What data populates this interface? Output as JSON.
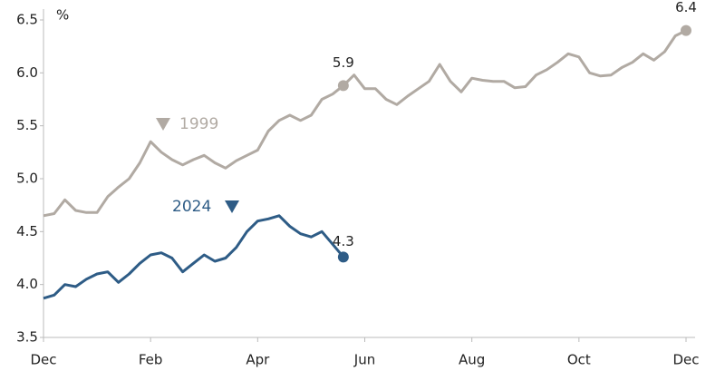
{
  "chart_data": {
    "type": "line",
    "y_unit": "%",
    "categories": [
      "Dec",
      null,
      null,
      null,
      null,
      null,
      null,
      null,
      null,
      null,
      "Feb",
      null,
      null,
      null,
      null,
      null,
      null,
      null,
      null,
      null,
      "Apr",
      null,
      null,
      null,
      null,
      null,
      null,
      null,
      null,
      null,
      "Jun",
      null,
      null,
      null,
      null,
      null,
      null,
      null,
      null,
      null,
      "Aug",
      null,
      null,
      null,
      null,
      null,
      null,
      null,
      null,
      null,
      "Oct",
      null,
      null,
      null,
      null,
      null,
      null,
      null,
      null,
      null,
      "Dec"
    ],
    "series": [
      {
        "name": "1999",
        "color": "#b1aaa3",
        "values": [
          4.65,
          4.67,
          4.8,
          4.7,
          4.68,
          4.68,
          4.83,
          4.92,
          5.0,
          5.15,
          5.35,
          5.25,
          5.18,
          5.13,
          5.18,
          5.22,
          5.15,
          5.1,
          5.17,
          5.22,
          5.27,
          5.45,
          5.55,
          5.6,
          5.55,
          5.6,
          5.75,
          5.8,
          5.88,
          5.98,
          5.85,
          5.85,
          5.75,
          5.7,
          5.78,
          5.85,
          5.92,
          6.08,
          5.92,
          5.82,
          5.95,
          5.93,
          5.92,
          5.92,
          5.86,
          5.87,
          5.98,
          6.03,
          6.1,
          6.18,
          6.15,
          6.0,
          5.97,
          5.98,
          6.05,
          6.1,
          6.18,
          6.12,
          6.2,
          6.35,
          6.4
        ],
        "value_labels": [
          null,
          null,
          null,
          null,
          null,
          null,
          null,
          null,
          null,
          null,
          null,
          null,
          null,
          null,
          null,
          null,
          null,
          null,
          null,
          null,
          null,
          null,
          null,
          null,
          null,
          null,
          null,
          null,
          "5.9",
          null,
          null,
          null,
          null,
          null,
          null,
          null,
          null,
          null,
          null,
          null,
          null,
          null,
          null,
          null,
          null,
          null,
          null,
          null,
          null,
          null,
          null,
          null,
          null,
          null,
          null,
          null,
          null,
          null,
          null,
          null,
          "6.4"
        ]
      },
      {
        "name": "2024",
        "color": "#2e5c86",
        "values": [
          3.87,
          3.9,
          4.0,
          3.98,
          4.05,
          4.1,
          4.12,
          4.02,
          4.1,
          4.2,
          4.28,
          4.3,
          4.25,
          4.12,
          4.2,
          4.28,
          4.22,
          4.25,
          4.35,
          4.5,
          4.6,
          4.62,
          4.65,
          4.55,
          4.48,
          4.45,
          4.5,
          4.38,
          4.26,
          null,
          null,
          null,
          null,
          null,
          null,
          null,
          null,
          null,
          null,
          null,
          null,
          null,
          null,
          null,
          null,
          null,
          null,
          null,
          null,
          null,
          null,
          null,
          null,
          null,
          null,
          null,
          null,
          null,
          null,
          null,
          null
        ],
        "value_labels": [
          null,
          null,
          null,
          null,
          null,
          null,
          null,
          null,
          null,
          null,
          null,
          null,
          null,
          null,
          null,
          null,
          null,
          null,
          null,
          null,
          null,
          null,
          null,
          null,
          null,
          null,
          null,
          null,
          "4.3",
          null,
          null,
          null,
          null,
          null,
          null,
          null,
          null,
          null,
          null,
          null,
          null,
          null,
          null,
          null,
          null,
          null,
          null,
          null,
          null,
          null,
          null,
          null,
          null,
          null,
          null,
          null,
          null,
          null,
          null,
          null,
          null
        ]
      }
    ],
    "ylim": [
      3.5,
      6.5
    ],
    "yticks": [
      3.5,
      {
        "value": 4,
        "label": "4.0"
      },
      4.5,
      {
        "value": 5,
        "label": "5.0"
      },
      5.5,
      {
        "value": 6,
        "label": "6.0"
      },
      6.5
    ],
    "grid": false
  }
}
